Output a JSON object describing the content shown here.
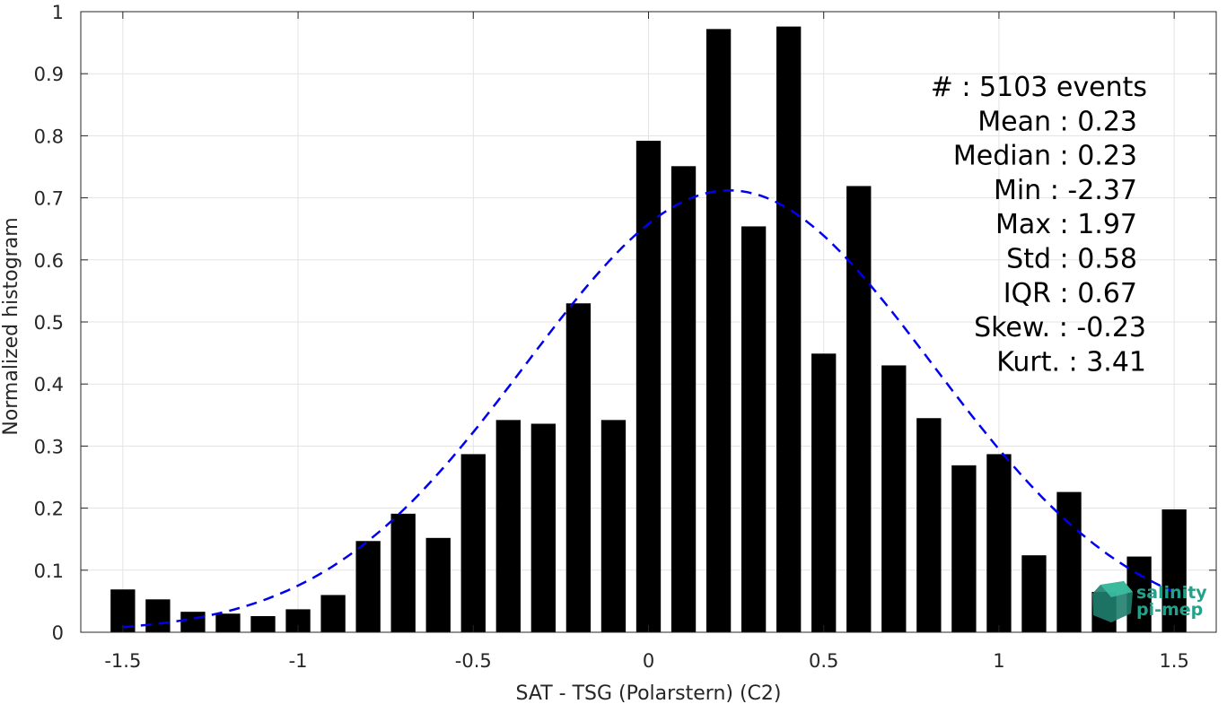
{
  "chart_data": {
    "type": "bar",
    "xlabel": "SAT - TSG (Polarstern) (C2)",
    "ylabel": "Normalized histogram",
    "xlim": [
      -1.62,
      1.62
    ],
    "ylim": [
      0,
      1
    ],
    "x_ticks": [
      -1.5,
      -1,
      -0.5,
      0,
      0.5,
      1,
      1.5
    ],
    "x_tick_labels": [
      "-1.5",
      "-1",
      "-0.5",
      "0",
      "0.5",
      "1",
      "1.5"
    ],
    "y_ticks": [
      0,
      0.1,
      0.2,
      0.3,
      0.4,
      0.5,
      0.6,
      0.7,
      0.8,
      0.9,
      1
    ],
    "y_tick_labels": [
      "0",
      "0.1",
      "0.2",
      "0.3",
      "0.4",
      "0.5",
      "0.6",
      "0.7",
      "0.8",
      "0.9",
      "1"
    ],
    "grid": true,
    "bar_color": "#000000",
    "bar_width": 0.07,
    "bins": [
      -1.5,
      -1.4,
      -1.3,
      -1.2,
      -1.1,
      -1.0,
      -0.9,
      -0.8,
      -0.7,
      -0.6,
      -0.5,
      -0.4,
      -0.3,
      -0.2,
      -0.1,
      0.0,
      0.1,
      0.2,
      0.3,
      0.4,
      0.5,
      0.6,
      0.7,
      0.8,
      0.9,
      1.0,
      1.1,
      1.2,
      1.3,
      1.4,
      1.5
    ],
    "values": [
      0.069,
      0.053,
      0.033,
      0.03,
      0.026,
      0.037,
      0.06,
      0.147,
      0.191,
      0.152,
      0.287,
      0.342,
      0.336,
      0.53,
      0.342,
      0.792,
      0.751,
      0.972,
      0.654,
      0.976,
      0.449,
      0.719,
      0.43,
      0.345,
      0.269,
      0.287,
      0.124,
      0.226,
      0.065,
      0.122,
      0.198
    ],
    "fit_curve": {
      "style": "dashed",
      "color": "#0000ee",
      "mean": 0.23,
      "std": 0.58,
      "peak": 0.712,
      "x_range": [
        -1.5,
        1.5
      ]
    },
    "annotation_lines": [
      "#  : 5103 events",
      "Mean : 0.23",
      "Median : 0.23",
      "Min : -2.37",
      "Max : 1.97",
      "Std : 0.58",
      "IQR : 0.67",
      "Skew. : -0.23",
      "Kurt. : 3.41"
    ]
  },
  "logo": {
    "line1": "salinity",
    "line2": "pi-mep",
    "color": "#20a38a"
  }
}
